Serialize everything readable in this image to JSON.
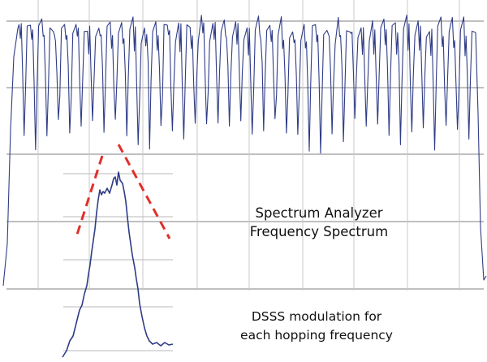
{
  "captions": {
    "analyzer": [
      "Spectrum Analyzer",
      "Frequency Spectrum"
    ],
    "dsss": [
      "DSSS modulation for",
      "each hopping frequency"
    ]
  },
  "colors": {
    "background": "#ffffff",
    "grid_main": "#9a9a9a",
    "grid_inset": "#b8b8b8",
    "trace": "#2f3c86",
    "trace_dark": "#1d2448",
    "dashed_guides": "#e0302a",
    "text": "#111111"
  }
}
